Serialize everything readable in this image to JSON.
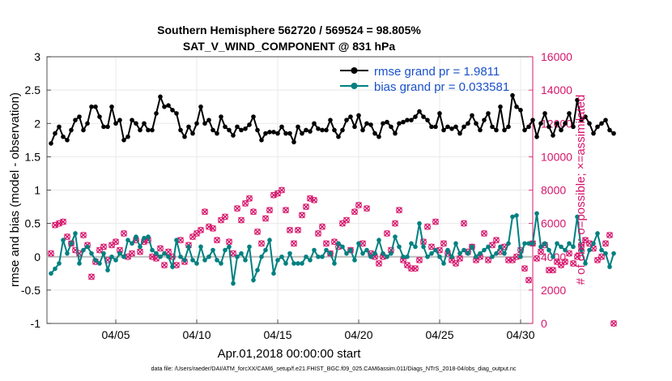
{
  "chart_data": {
    "type": "line",
    "title": "Southern Hemisphere 562720 / 569524 = 98.805%",
    "subtitle": "SAT_V_WIND_COMPONENT @ 831 hPa",
    "xlabel": "Apr.01,2018 00:00:00 start",
    "ylabel": "rmse and bias (model - observation)",
    "y2label": "# of obs: o=possible; ×=assimilated",
    "footnote": "data file: /Users/raeder/DAI/ATM_forcXX/CAM6_setup/f.e21.FHIST_BGC.f09_025.CAM6assim.011/Diags_NTrS_2018-04/obs_diag_output.nc",
    "xlim": [
      0.75,
      30.75
    ],
    "ylim": [
      -1,
      3
    ],
    "y2lim": [
      0,
      16000
    ],
    "grid": true,
    "legend_position": "top-right",
    "xticks": [
      {
        "value": 5,
        "label": "04/05"
      },
      {
        "value": 10,
        "label": "04/10"
      },
      {
        "value": 15,
        "label": "04/15"
      },
      {
        "value": 20,
        "label": "04/20"
      },
      {
        "value": 25,
        "label": "04/25"
      },
      {
        "value": 30,
        "label": "04/30"
      }
    ],
    "yticks": [
      {
        "value": -1,
        "label": "-1"
      },
      {
        "value": -0.5,
        "label": "-0.5"
      },
      {
        "value": 0,
        "label": "0"
      },
      {
        "value": 0.5,
        "label": "0.5"
      },
      {
        "value": 1,
        "label": "1"
      },
      {
        "value": 1.5,
        "label": "1.5"
      },
      {
        "value": 2,
        "label": "2"
      },
      {
        "value": 2.5,
        "label": "2.5"
      },
      {
        "value": 3,
        "label": "3"
      }
    ],
    "y2ticks": [
      {
        "value": 0,
        "label": "0"
      },
      {
        "value": 2000,
        "label": "2000"
      },
      {
        "value": 4000,
        "label": "4000"
      },
      {
        "value": 6000,
        "label": "6000"
      },
      {
        "value": 8000,
        "label": "8000"
      },
      {
        "value": 10000,
        "label": "10000"
      },
      {
        "value": 12000,
        "label": "12000"
      },
      {
        "value": 14000,
        "label": "14000"
      },
      {
        "value": 16000,
        "label": "16000"
      }
    ],
    "x_start": 1,
    "x_step": 0.25,
    "series": [
      {
        "name": "rmse grand pr = 1.9811",
        "color": "#000000",
        "axis": "left",
        "values": [
          1.7,
          1.85,
          1.95,
          1.8,
          1.75,
          1.9,
          2.05,
          2.1,
          1.9,
          2.0,
          2.25,
          2.25,
          2.1,
          1.95,
          1.95,
          2.25,
          2.0,
          2.05,
          1.75,
          1.8,
          2.05,
          2.0,
          1.9,
          2.0,
          1.9,
          1.9,
          2.15,
          2.4,
          2.25,
          2.27,
          2.2,
          2.15,
          1.9,
          1.8,
          1.95,
          1.85,
          2.0,
          2.25,
          2.0,
          2.05,
          1.9,
          1.85,
          2.1,
          1.95,
          1.9,
          1.82,
          1.95,
          1.9,
          1.92,
          1.98,
          2.1,
          1.9,
          1.75,
          1.85,
          1.87,
          1.87,
          1.85,
          1.95,
          1.85,
          1.85,
          1.72,
          1.95,
          1.85,
          1.9,
          1.88,
          2.0,
          1.92,
          1.9,
          1.9,
          2.05,
          1.9,
          1.8,
          1.9,
          2.05,
          2.1,
          1.95,
          2.12,
          1.9,
          2.0,
          1.98,
          1.85,
          1.8,
          2.0,
          2.02,
          1.95,
          1.85,
          2.0,
          2.02,
          2.05,
          2.05,
          2.1,
          2.18,
          2.1,
          2.05,
          1.95,
          1.95,
          2.15,
          1.9,
          1.95,
          1.92,
          1.95,
          1.85,
          1.95,
          2.0,
          2.12,
          2.0,
          1.9,
          2.05,
          2.15,
          1.95,
          1.9,
          2.25,
          1.9,
          1.95,
          2.42,
          2.25,
          2.2,
          1.9,
          1.95,
          2.05,
          1.8,
          2.0,
          2.15,
          1.95,
          1.82,
          2.0,
          1.9,
          2.0,
          2.15,
          1.95,
          2.35,
          2.05,
          2.1,
          2.0,
          1.85,
          1.95,
          2.0,
          2.05,
          1.9,
          1.85
        ]
      },
      {
        "name": "bias grand pr = 0.033581",
        "color": "#008080",
        "axis": "left",
        "values": [
          -0.25,
          -0.18,
          -0.1,
          0.25,
          0.05,
          0.2,
          0.35,
          -0.1,
          0.1,
          0.15,
          0.05,
          -0.05,
          -0.1,
          0.05,
          -0.2,
          0.0,
          -0.05,
          0.05,
          0.0,
          0.25,
          0.2,
          0.3,
          0.15,
          0.28,
          0.3,
          0.1,
          0.05,
          0.0,
          0.05,
          0.0,
          -0.15,
          0.25,
          0.0,
          -0.05,
          0.15,
          -0.05,
          -0.1,
          0.15,
          -0.05,
          0.0,
          0.1,
          -0.05,
          -0.1,
          0.1,
          0.15,
          -0.4,
          0.0,
          0.05,
          -0.05,
          0.15,
          -0.35,
          -0.2,
          0.0,
          0.1,
          0.25,
          -0.25,
          -0.05,
          0.0,
          -0.1,
          0.05,
          -0.1,
          -0.1,
          -0.1,
          0.0,
          -0.05,
          0.1,
          0.0,
          0.0,
          0.1,
          0.05,
          -0.1,
          0.2,
          0.15,
          0.05,
          0.1,
          -0.05,
          0.2,
          0.05,
          0.1,
          0.0,
          0.05,
          0.25,
          0.05,
          0.0,
          0.05,
          0.3,
          0.15,
          0.0,
          0.0,
          0.2,
          0.15,
          0.5,
          0.15,
          0.0,
          0.05,
          0.1,
          0.0,
          -0.1,
          0.1,
          0.0,
          0.2,
          0.05,
          0.1,
          0.05,
          0.15,
          0.0,
          0.05,
          0.1,
          0.15,
          0.0,
          0.05,
          0.15,
          0.05,
          0.2,
          0.6,
          0.62,
          0.0,
          0.2,
          0.2,
          0.2,
          0.65,
          0.15,
          0.2,
          0.1,
          0.0,
          0.2,
          0.15,
          0.1,
          0.2,
          0.15,
          0.6,
          0.1,
          -0.1,
          0.1,
          0.2,
          0.35,
          0.1,
          0.05,
          -0.15,
          0.05
        ]
      }
    ],
    "obs_counts": {
      "name": "# of obs",
      "color": "#d6156b",
      "axis": "right",
      "values": [
        4200,
        5900,
        6000,
        6100,
        5200,
        4800,
        4400,
        4200,
        5300,
        4700,
        2800,
        3700,
        4400,
        4600,
        3800,
        4700,
        4900,
        4400,
        5400,
        4000,
        4200,
        5000,
        4300,
        4900,
        5000,
        4000,
        3900,
        4500,
        3500,
        4300,
        4000,
        3500,
        5000,
        3700,
        4700,
        5200,
        5400,
        5600,
        6700,
        5800,
        5700,
        5000,
        6200,
        6400,
        4900,
        4200,
        6900,
        6200,
        7200,
        7500,
        6700,
        5500,
        4800,
        6300,
        6800,
        7700,
        7800,
        8000,
        6800,
        5600,
        4800,
        5600,
        6500,
        7000,
        7500,
        7400,
        5400,
        5800,
        4800,
        4200,
        4900,
        4600,
        6000,
        6200,
        4400,
        6700,
        7100,
        4800,
        6900,
        4200,
        4000,
        3600,
        4000,
        5400,
        4400,
        6000,
        6800,
        3800,
        3500,
        3300,
        3300,
        3800,
        4900,
        5800,
        4600,
        6100,
        4400,
        4800,
        4200,
        3800,
        3600,
        3900,
        6000,
        4300,
        4600,
        3800,
        4000,
        5400,
        3800,
        4700,
        5000,
        4300,
        4600,
        3800,
        3800,
        4000,
        4400,
        3300,
        2600,
        4800,
        3900,
        4300,
        4700,
        3200,
        3200,
        3700,
        3500,
        3700,
        4200,
        3600,
        4000,
        4600,
        5000,
        4800,
        4500,
        3800,
        4000,
        4800,
        5300,
        0
      ]
    }
  }
}
